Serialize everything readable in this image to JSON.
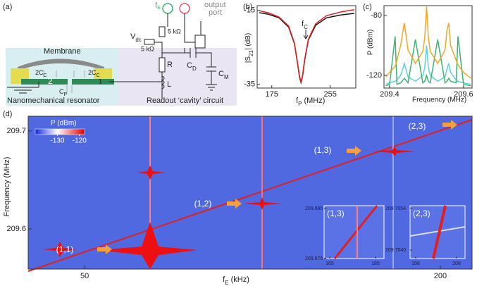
{
  "diagram": {
    "label": "(a)",
    "membrane": "Membrane",
    "resonator": "Nanomechanical resonator",
    "circuit": "Readout ‘cavity’ circuit",
    "cap_left": {
      "main": "2C",
      "sub": "C"
    },
    "cap_right": {
      "main": "2C",
      "sub": "C"
    },
    "cap_p": {
      "main": "C",
      "sub": "P"
    },
    "node_2": "2",
    "node_1": "1",
    "r": "R",
    "l": "L",
    "cap_d": {
      "main": "C",
      "sub": "D"
    },
    "cap_m": {
      "main": "C",
      "sub": "M"
    },
    "vdc": {
      "main": "V",
      "sub": "dc"
    },
    "res_top": "5 kΩ",
    "res_left": "5 kΩ",
    "fe": {
      "main": "f",
      "sub": "E"
    },
    "output": [
      "output",
      "port"
    ]
  },
  "chart_data": [
    {
      "type": "line",
      "label": "(b)",
      "ylabel": {
        "main": "|S",
        "sub": "21",
        "rest": "| (dB)"
      },
      "xlabel": {
        "main": "f",
        "sub": "P",
        "rest": " (MHz)"
      },
      "annotation": {
        "main": "f",
        "sub": "C"
      },
      "x": [
        158,
        170,
        185,
        198,
        206,
        210,
        213,
        215,
        217,
        220,
        225,
        235,
        250,
        270,
        288
      ],
      "series": [
        {
          "color": "#111111",
          "values": [
            -15.6,
            -16,
            -17,
            -19.5,
            -24,
            -29,
            -33,
            -34.5,
            -33,
            -28.5,
            -23,
            -19,
            -17,
            -16.2,
            -15.8
          ]
        },
        {
          "color": "#e02020",
          "values": [
            -15.1,
            -15.6,
            -16.8,
            -19.2,
            -23.8,
            -28.8,
            -32.8,
            -34.2,
            -32.8,
            -28.3,
            -22.8,
            -18.6,
            -16.4,
            -15.4,
            -14.8
          ]
        }
      ],
      "xlim": [
        155,
        290
      ],
      "ylim": [
        -36,
        -13.7
      ],
      "xticks": [
        175,
        255
      ],
      "yticks": [
        -15,
        -35
      ]
    },
    {
      "type": "line",
      "label": "(c)",
      "ylabel": "P (dBm)",
      "xlabel": "Frequency (MHz)",
      "x": [
        209.39,
        209.4,
        209.415,
        209.42,
        209.43,
        209.44,
        209.45,
        209.47,
        209.49,
        209.495,
        209.5,
        209.505,
        209.51,
        209.53,
        209.55,
        209.555,
        209.56,
        209.565,
        209.58,
        209.585,
        209.6,
        209.62
      ],
      "series": [
        {
          "color": "#5dd0e0",
          "values": [
            -126,
            -125,
            -124,
            -123,
            -120,
            -112,
            -121,
            -124,
            -120,
            -115,
            -100,
            -115,
            -120,
            -124,
            -121,
            -116,
            -112,
            -118,
            -123,
            -124,
            -125,
            -126
          ]
        },
        {
          "color": "#3cb371",
          "values": [
            -127,
            -126,
            -94,
            -126,
            -125,
            -122,
            -125,
            -96,
            -125,
            -124,
            -120,
            -124,
            -125,
            -96,
            -125,
            -124,
            -122,
            -124,
            -125,
            -94,
            -126,
            -127
          ]
        },
        {
          "color": "#f5a623",
          "values": [
            -121,
            -118,
            -114,
            -110,
            -100,
            -85,
            -103,
            -112,
            -104,
            -95,
            -74,
            -95,
            -104,
            -112,
            -103,
            -90,
            -85,
            -100,
            -110,
            -113,
            -118,
            -122
          ]
        }
      ],
      "xlim": [
        209.385,
        209.623
      ],
      "ylim": [
        -128.5,
        -73.4
      ],
      "xticks": [
        209.4,
        209.6
      ],
      "yticks": [
        -80,
        -120
      ]
    },
    {
      "type": "heatmap",
      "label": "(d)",
      "ylabel": "Frequency (MHz)",
      "xlabel": {
        "main": "f",
        "sub": "E",
        "rest": " (kHz)"
      },
      "colorbar": {
        "label": "P (dBm)",
        "clim": [
          -140,
          -117.7
        ],
        "ticks": [
          -130,
          -120
        ]
      },
      "xlim": [
        26.2,
        213.4
      ],
      "ylim": [
        209.559,
        209.715
      ],
      "xticks": [
        50,
        200
      ],
      "yticks": [
        209.6,
        209.7
      ],
      "annotations": [
        "(1,1)",
        "(1,2)",
        "(1,3)",
        "(2,3)"
      ],
      "insets": [
        {
          "label": "(1,3)",
          "yticks": [
            209.685,
            209.675
          ],
          "xticks": [
            165,
            185
          ]
        },
        {
          "label": "(2,3)",
          "yticks": [
            209.7054,
            {
              "value": 209.704,
              "label": "209.7040"
            }
          ],
          "xticks": [
            198,
            208
          ]
        }
      ]
    }
  ]
}
